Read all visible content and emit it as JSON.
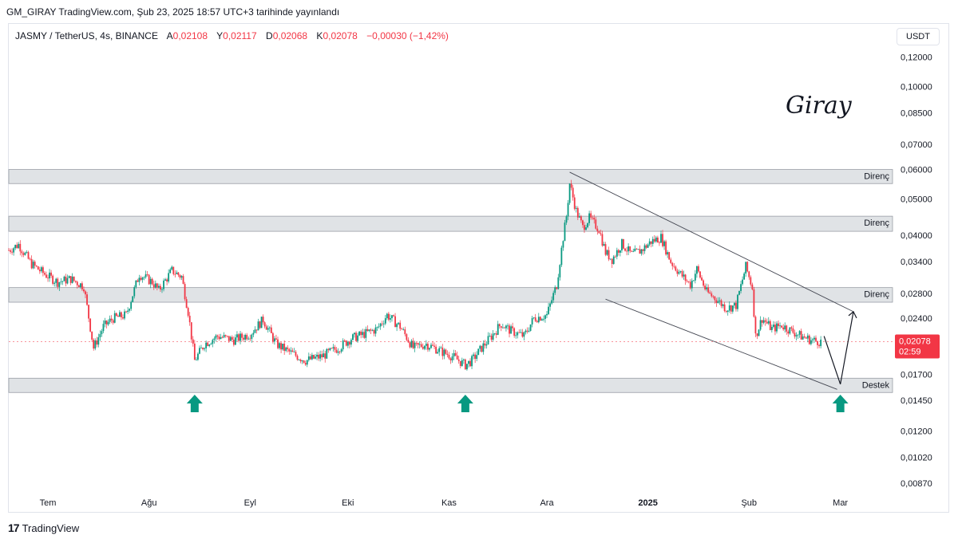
{
  "header": {
    "published": "GM_GIRAY TradingView.com, Şub 23, 2025 18:57 UTC+3 tarihinde yayınlandı"
  },
  "legend": {
    "symbol": "JASMY / TetherUS, 4s, BINANCE",
    "open_key": "A",
    "open": "0,02108",
    "high_key": "Y",
    "high": "0,02117",
    "low_key": "D",
    "low": "0,02068",
    "close_key": "K",
    "close": "0,02078",
    "change": "−0,00030 (−1,42%)"
  },
  "price_axis": {
    "currency": "USDT",
    "last_price": "0,02078",
    "countdown": "02:59"
  },
  "signature": "Giray",
  "footer": {
    "brand": "TradingView"
  },
  "colors": {
    "up": "#089981",
    "down": "#f23645",
    "zone": "#d6d9dd",
    "last": "#f23645"
  },
  "chart_data": {
    "type": "candlestick",
    "scale": "log",
    "ylim": [
      0.0082,
      0.13
    ],
    "y_ticks": [
      {
        "value": 0.12,
        "label": "0,12000"
      },
      {
        "value": 0.1,
        "label": "0,10000"
      },
      {
        "value": 0.085,
        "label": "0,08500"
      },
      {
        "value": 0.07,
        "label": "0,07000"
      },
      {
        "value": 0.06,
        "label": "0,06000"
      },
      {
        "value": 0.05,
        "label": "0,05000"
      },
      {
        "value": 0.04,
        "label": "0,04000"
      },
      {
        "value": 0.034,
        "label": "0,03400"
      },
      {
        "value": 0.028,
        "label": "0,02800"
      },
      {
        "value": 0.024,
        "label": "0,02400"
      },
      {
        "value": 0.017,
        "label": "0,01700"
      },
      {
        "value": 0.0145,
        "label": "0,01450"
      },
      {
        "value": 0.012,
        "label": "0,01200"
      },
      {
        "value": 0.0102,
        "label": "0,01020"
      },
      {
        "value": 0.0087,
        "label": "0,00870"
      }
    ],
    "x_ticks": [
      {
        "date": "2024-07-01",
        "label": "Tem"
      },
      {
        "date": "2024-08-01",
        "label": "Ağu"
      },
      {
        "date": "2024-09-01",
        "label": "Eyl"
      },
      {
        "date": "2024-10-01",
        "label": "Eki"
      },
      {
        "date": "2024-11-01",
        "label": "Kas"
      },
      {
        "date": "2024-12-01",
        "label": "Ara"
      },
      {
        "date": "2025-01-01",
        "label": "2025"
      },
      {
        "date": "2025-02-01",
        "label": "Şub"
      },
      {
        "date": "2025-03-01",
        "label": "Mar"
      }
    ],
    "xlim": [
      "2024-06-19",
      "2025-03-17"
    ],
    "price_path": [
      [
        "2024-06-19",
        0.0365
      ],
      [
        "2024-06-22",
        0.0378
      ],
      [
        "2024-06-26",
        0.0335
      ],
      [
        "2024-06-30",
        0.0315
      ],
      [
        "2024-07-04",
        0.03
      ],
      [
        "2024-07-08",
        0.0306
      ],
      [
        "2024-07-12",
        0.0292
      ],
      [
        "2024-07-15",
        0.02
      ],
      [
        "2024-07-18",
        0.0228
      ],
      [
        "2024-07-21",
        0.024
      ],
      [
        "2024-07-25",
        0.0245
      ],
      [
        "2024-07-29",
        0.0315
      ],
      [
        "2024-08-02",
        0.03
      ],
      [
        "2024-08-04",
        0.0285
      ],
      [
        "2024-08-08",
        0.0322
      ],
      [
        "2024-08-11",
        0.031
      ],
      [
        "2024-08-13",
        0.025
      ],
      [
        "2024-08-15",
        0.0185
      ],
      [
        "2024-08-18",
        0.0205
      ],
      [
        "2024-08-22",
        0.0215
      ],
      [
        "2024-08-27",
        0.021
      ],
      [
        "2024-09-01",
        0.0218
      ],
      [
        "2024-09-05",
        0.0238
      ],
      [
        "2024-09-09",
        0.0205
      ],
      [
        "2024-09-13",
        0.0195
      ],
      [
        "2024-09-18",
        0.0185
      ],
      [
        "2024-09-23",
        0.019
      ],
      [
        "2024-09-28",
        0.02
      ],
      [
        "2024-10-02",
        0.0212
      ],
      [
        "2024-10-06",
        0.0218
      ],
      [
        "2024-10-10",
        0.0225
      ],
      [
        "2024-10-13",
        0.0245
      ],
      [
        "2024-10-17",
        0.0228
      ],
      [
        "2024-10-21",
        0.02
      ],
      [
        "2024-10-25",
        0.0205
      ],
      [
        "2024-10-30",
        0.0195
      ],
      [
        "2024-11-02",
        0.019
      ],
      [
        "2024-11-06",
        0.018
      ],
      [
        "2024-11-08",
        0.0185
      ],
      [
        "2024-11-11",
        0.02
      ],
      [
        "2024-11-14",
        0.0215
      ],
      [
        "2024-11-17",
        0.0232
      ],
      [
        "2024-11-20",
        0.0222
      ],
      [
        "2024-11-24",
        0.0215
      ],
      [
        "2024-11-27",
        0.024
      ],
      [
        "2024-12-01",
        0.0245
      ],
      [
        "2024-12-04",
        0.0295
      ],
      [
        "2024-12-06",
        0.0395
      ],
      [
        "2024-12-07",
        0.045
      ],
      [
        "2024-12-08",
        0.055
      ],
      [
        "2024-12-10",
        0.0465
      ],
      [
        "2024-12-12",
        0.042
      ],
      [
        "2024-12-14",
        0.0445
      ],
      [
        "2024-12-17",
        0.0415
      ],
      [
        "2024-12-19",
        0.036
      ],
      [
        "2024-12-21",
        0.0345
      ],
      [
        "2024-12-24",
        0.038
      ],
      [
        "2024-12-27",
        0.0355
      ],
      [
        "2024-12-30",
        0.0365
      ],
      [
        "2025-01-02",
        0.0385
      ],
      [
        "2025-01-05",
        0.0395
      ],
      [
        "2025-01-08",
        0.034
      ],
      [
        "2025-01-11",
        0.0315
      ],
      [
        "2025-01-14",
        0.0295
      ],
      [
        "2025-01-16",
        0.0325
      ],
      [
        "2025-01-19",
        0.0282
      ],
      [
        "2025-01-22",
        0.027
      ],
      [
        "2025-01-25",
        0.0255
      ],
      [
        "2025-01-28",
        0.026
      ],
      [
        "2025-01-31",
        0.033
      ],
      [
        "2025-02-02",
        0.029
      ],
      [
        "2025-02-03",
        0.0215
      ],
      [
        "2025-02-05",
        0.024
      ],
      [
        "2025-02-08",
        0.0225
      ],
      [
        "2025-02-11",
        0.023
      ],
      [
        "2025-02-14",
        0.0222
      ],
      [
        "2025-02-17",
        0.0215
      ],
      [
        "2025-02-20",
        0.021
      ],
      [
        "2025-02-23",
        0.02078
      ]
    ],
    "zones": [
      {
        "label": "Direnç",
        "low": 0.055,
        "high": 0.06
      },
      {
        "label": "Direnç",
        "low": 0.041,
        "high": 0.045
      },
      {
        "label": "Direnç",
        "low": 0.0265,
        "high": 0.029
      },
      {
        "label": "Destek",
        "low": 0.0152,
        "high": 0.0166
      }
    ],
    "channel": [
      {
        "from": [
          "2024-12-08",
          0.059
        ],
        "to": [
          "2025-03-05",
          0.025
        ]
      },
      {
        "from": [
          "2024-12-19",
          0.027
        ],
        "to": [
          "2025-02-28",
          0.0155
        ]
      }
    ],
    "projection": [
      [
        "2025-02-24",
        0.0215
      ],
      [
        "2025-03-01",
        0.016
      ],
      [
        "2025-03-05",
        0.025
      ]
    ],
    "markers": [
      {
        "date": "2024-08-15",
        "kind": "up-arrow"
      },
      {
        "date": "2024-11-06",
        "kind": "up-arrow"
      },
      {
        "date": "2025-03-01",
        "kind": "up-arrow"
      }
    ]
  }
}
